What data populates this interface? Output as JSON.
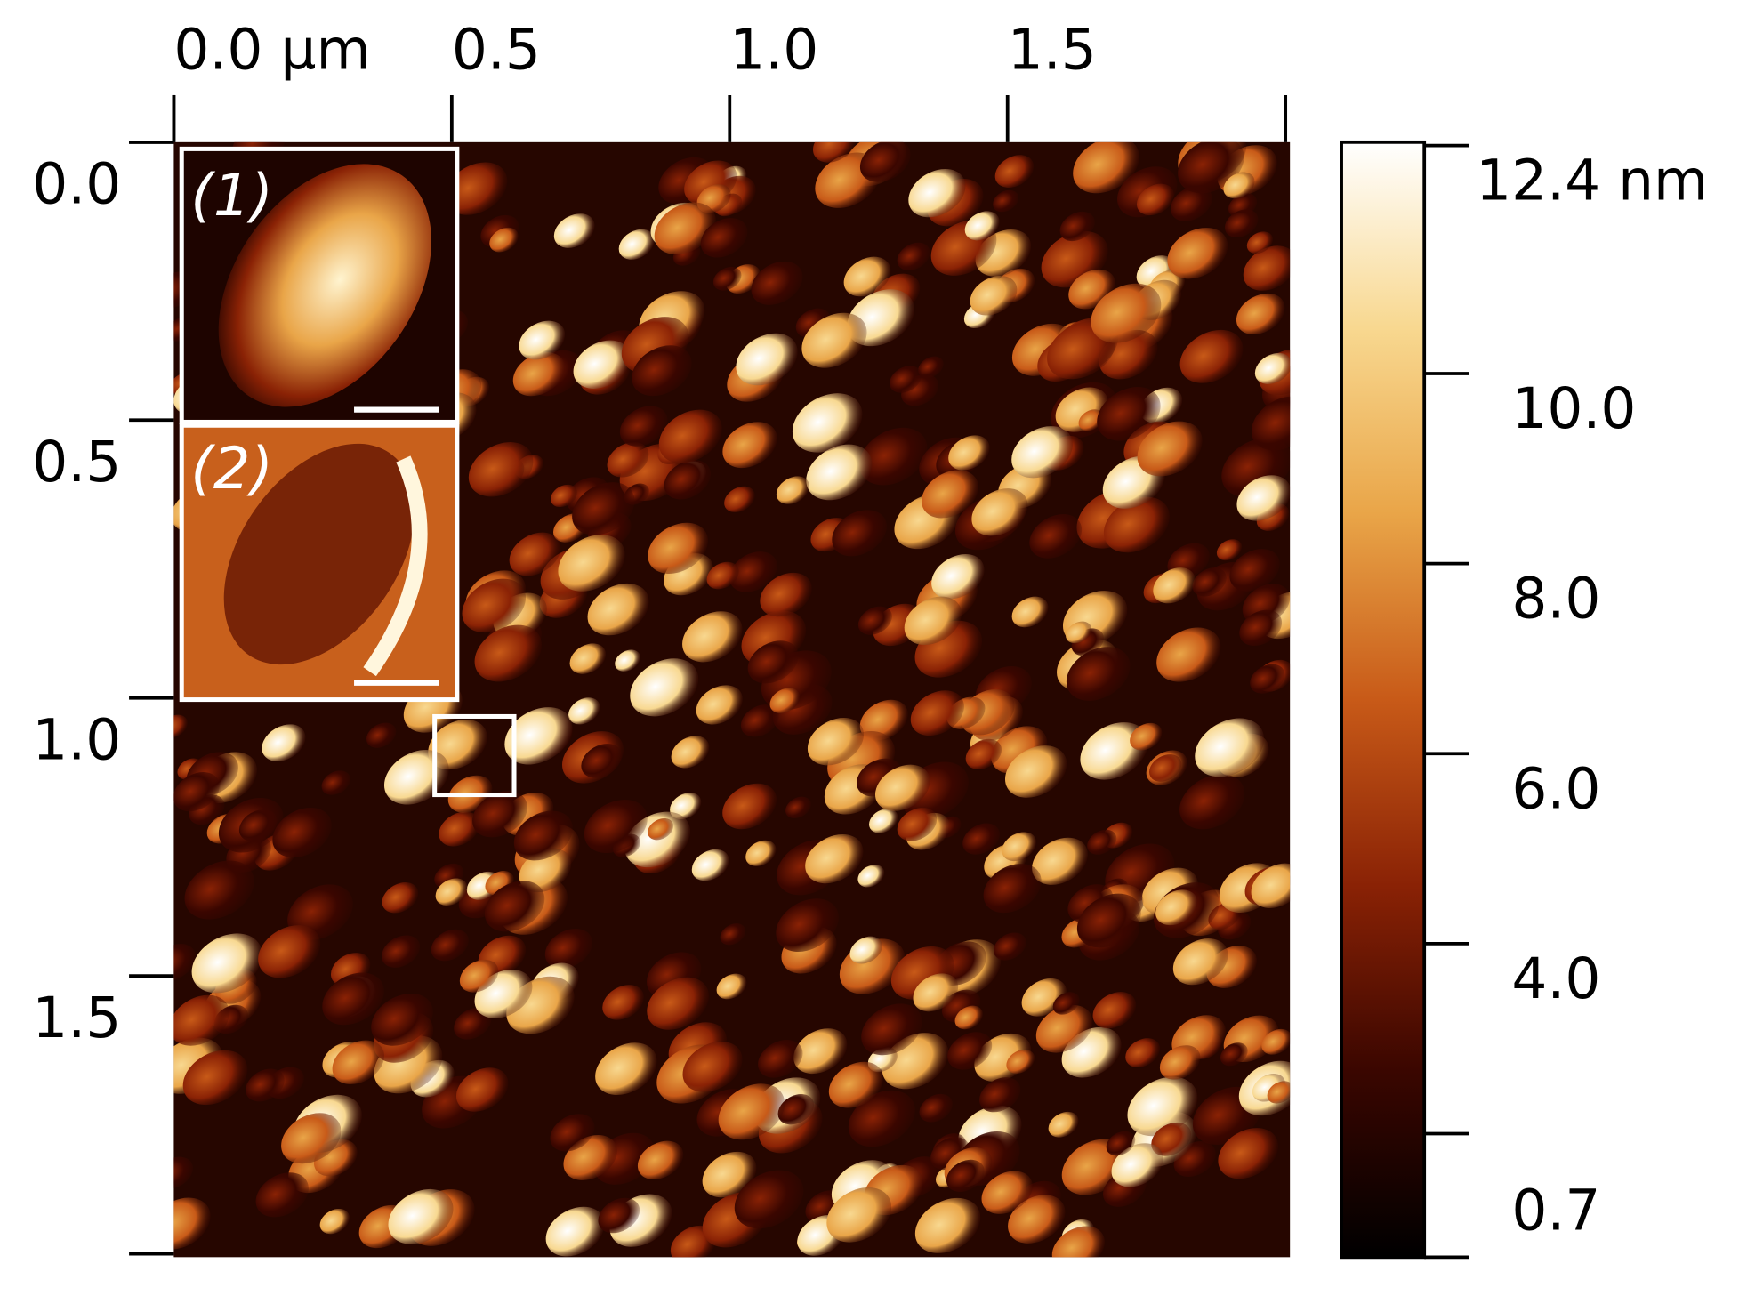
{
  "chart_data": {
    "type": "image",
    "xlim": [
      0,
      2.0
    ],
    "xticks": [
      {
        "value": 0,
        "label": "0.0 µm"
      },
      0.5,
      {
        "value": 1,
        "label": "1.0"
      },
      1.5,
      {
        "value": 2,
        "label": null
      }
    ],
    "ylim": [
      0,
      2.0
    ],
    "yticks": [
      {
        "value": 0,
        "label": "0.0"
      },
      0.5,
      {
        "value": 1,
        "label": "1.0"
      },
      1.5,
      {
        "value": 2,
        "label": null
      }
    ],
    "colorbar_lim": [
      0.7,
      12.4
    ],
    "colorbar_ticks": [
      {
        "value": 12.4,
        "label": "12.4 nm"
      },
      {
        "value": 10,
        "label": "10.0"
      },
      {
        "value": 8,
        "label": "8.0"
      },
      {
        "value": 6,
        "label": "6.0"
      },
      {
        "value": 4,
        "label": "4.0"
      },
      {
        "value": 2,
        "label": null
      },
      0.7
    ],
    "colormap": [
      "#000000",
      "#3a0600",
      "#8a2205",
      "#c85a18",
      "#e9a548",
      "#f8d890",
      "#ffffff"
    ],
    "inset_labels": [
      "(1)",
      "(2)"
    ]
  }
}
